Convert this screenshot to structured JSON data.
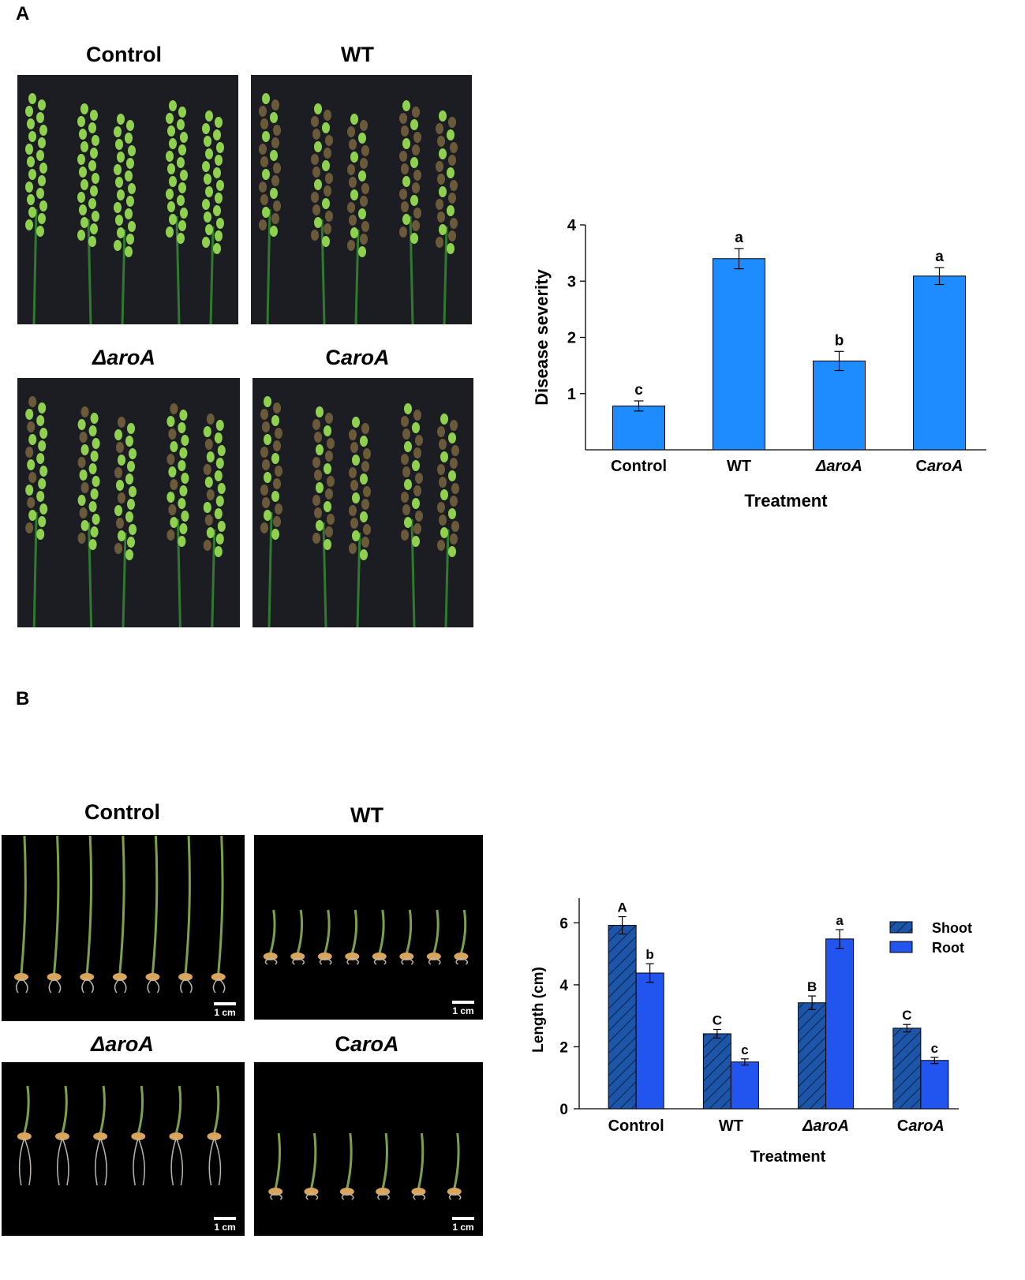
{
  "panels": {
    "a": {
      "label": "A",
      "photos": [
        {
          "title_pre": "",
          "title_it": "",
          "title": "Control"
        },
        {
          "title_pre": "",
          "title_it": "",
          "title": "WT"
        },
        {
          "title_pre": "",
          "title_it": "ΔaroA",
          "title": ""
        },
        {
          "title_pre": "C",
          "title_it": "aroA",
          "title": ""
        }
      ]
    },
    "b": {
      "label": "B",
      "photos": [
        {
          "title_pre": "",
          "title_it": "",
          "title": "Control",
          "scale": "1 cm"
        },
        {
          "title_pre": "",
          "title_it": "",
          "title": "WT",
          "scale": "1 cm"
        },
        {
          "title_pre": "",
          "title_it": "ΔaroA",
          "title": "",
          "scale": "1 cm"
        },
        {
          "title_pre": "C",
          "title_it": "aroA",
          "title": "",
          "scale": "1 cm"
        }
      ]
    }
  },
  "colors": {
    "bar_fill": "#1e8cff",
    "shoot_fill": "#1d56a8",
    "root_fill": "#2255ee",
    "photo_bg_a": "#1b1d22",
    "photo_bg_b": "#000000",
    "panicle_healthy": "#8fd14f",
    "panicle_diseased": "#6b5a3a"
  },
  "chart_data": [
    {
      "type": "bar",
      "categories": [
        "Control",
        "WT",
        "ΔaroA",
        "CaroA"
      ],
      "category_italic": [
        false,
        false,
        true,
        true
      ],
      "values": [
        0.78,
        3.4,
        1.58,
        3.09
      ],
      "errors": [
        0.09,
        0.18,
        0.17,
        0.15
      ],
      "letters": [
        "c",
        "a",
        "b",
        "a"
      ],
      "title": "",
      "xlabel": "Treatment",
      "ylabel": "Disease severity",
      "ylim": [
        0,
        4
      ],
      "yticks": [
        1,
        2,
        3,
        4
      ],
      "grid": false
    },
    {
      "type": "bar",
      "categories": [
        "Control",
        "WT",
        "ΔaroA",
        "CaroA"
      ],
      "category_italic": [
        false,
        false,
        true,
        true
      ],
      "series": [
        {
          "name": "Shoot",
          "pattern": "hatched",
          "values": [
            5.92,
            2.42,
            3.42,
            2.6
          ],
          "errors": [
            0.28,
            0.14,
            0.22,
            0.12
          ],
          "letters": [
            "A",
            "C",
            "B",
            "C"
          ]
        },
        {
          "name": "Root",
          "pattern": "solid",
          "values": [
            4.38,
            1.51,
            5.48,
            1.56
          ],
          "errors": [
            0.3,
            0.1,
            0.3,
            0.1
          ],
          "letters": [
            "b",
            "c",
            "a",
            "c"
          ]
        }
      ],
      "title": "",
      "xlabel": "Treatment",
      "ylabel": "Length (cm)",
      "ylim": [
        0,
        6.8
      ],
      "yticks": [
        0,
        2,
        4,
        6
      ],
      "legend_position": "top-right",
      "grid": false
    }
  ]
}
